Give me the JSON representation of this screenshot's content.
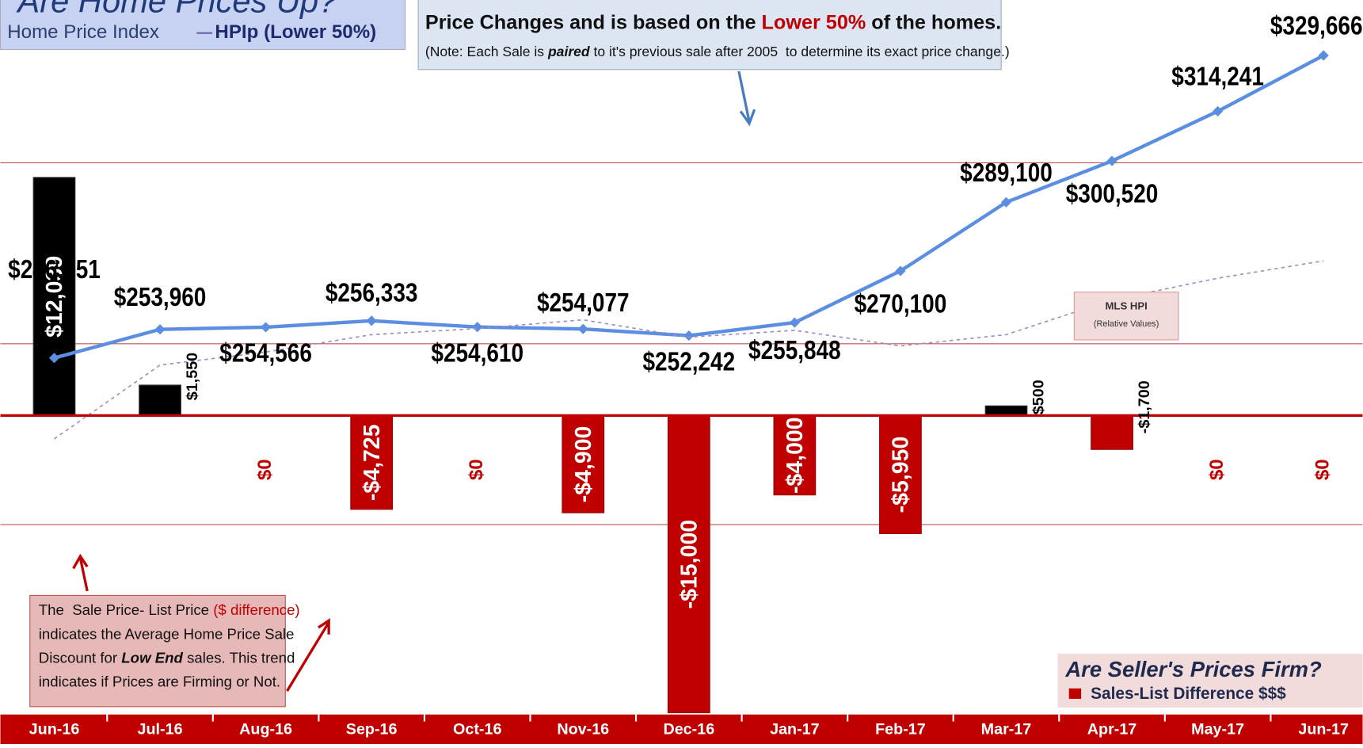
{
  "chart_data": {
    "type": "combo",
    "title": "Are Home Prices Up?",
    "legend_title": "Home Price Index",
    "categories": [
      "Jun-16",
      "Jul-16",
      "Aug-16",
      "Sep-16",
      "Oct-16",
      "Nov-16",
      "Dec-16",
      "Jan-17",
      "Feb-17",
      "Mar-17",
      "Apr-17",
      "May-17",
      "Jun-17"
    ],
    "series": [
      {
        "name": "HPIp (Lower 50%)",
        "type": "line",
        "color": "#5b8ee0",
        "values": [
          246051,
          253960,
          254566,
          256333,
          254610,
          254077,
          252242,
          255848,
          270100,
          289100,
          300520,
          314241,
          329666
        ],
        "value_labels": [
          "$246,051",
          "$253,960",
          "$254,566",
          "$256,333",
          "$254,610",
          "$254,077",
          "$252,242",
          "$255,848",
          "$270,100",
          "$289,100",
          "$300,520",
          "$314,241",
          "$329,666"
        ]
      },
      {
        "name": "MLS HPI",
        "type": "line",
        "dashed": true,
        "color": "#9a8fc4",
        "values": [
          223700,
          244100,
          247700,
          252500,
          254200,
          256600,
          251800,
          253700,
          249400,
          252500,
          262100,
          268100,
          272900
        ]
      },
      {
        "name": "Sales-List Difference $$$",
        "type": "bar",
        "axis": "y2",
        "color": "#c00000",
        "positive_color": "#000000",
        "values": [
          12039,
          1550,
          0,
          -4725,
          0,
          -4900,
          -15000,
          -4000,
          -5950,
          500,
          -1700,
          0,
          0
        ],
        "value_labels": [
          "$12,039",
          "$1,550",
          "$0",
          "-$4,725",
          "$0",
          "-$4,900",
          "-$15,000",
          "-$4,000",
          "-$5,950",
          "$500",
          "-$1,700",
          "$0",
          "$0"
        ]
      }
    ],
    "ylim": [
      148000,
      345000
    ],
    "yticks": [
      200000,
      250000,
      300000
    ],
    "y2lim": [
      -15000,
      21000
    ],
    "grid": true,
    "mls_note": "(Relative Values)",
    "note_box": [
      [
        {
          "text": "Price Changes and is based on the "
        },
        {
          "text": "Lower 50%",
          "color": "#c00000"
        },
        {
          "text": " of the homes."
        }
      ],
      [
        {
          "text": "(Note: Each Sale is "
        },
        {
          "text": "paired",
          "style": "bolditalic"
        },
        {
          "text": " to it's previous sale after 2005  to determine its exact price change.)"
        }
      ]
    ],
    "explain_box": [
      [
        {
          "text": "The  Sale Price- List Price "
        },
        {
          "text": "($ difference)",
          "color": "#c00000"
        }
      ],
      [
        {
          "text": "indicates the Average Home Price Sale"
        }
      ],
      [
        {
          "text": "Discount for "
        },
        {
          "text": "Low End",
          "style": "bolditalic"
        },
        {
          "text": " sales. This trend"
        }
      ],
      [
        {
          "text": "indicates if Prices are Firming or Not."
        }
      ]
    ],
    "legend2_title": "Are Seller's Prices Firm?"
  }
}
